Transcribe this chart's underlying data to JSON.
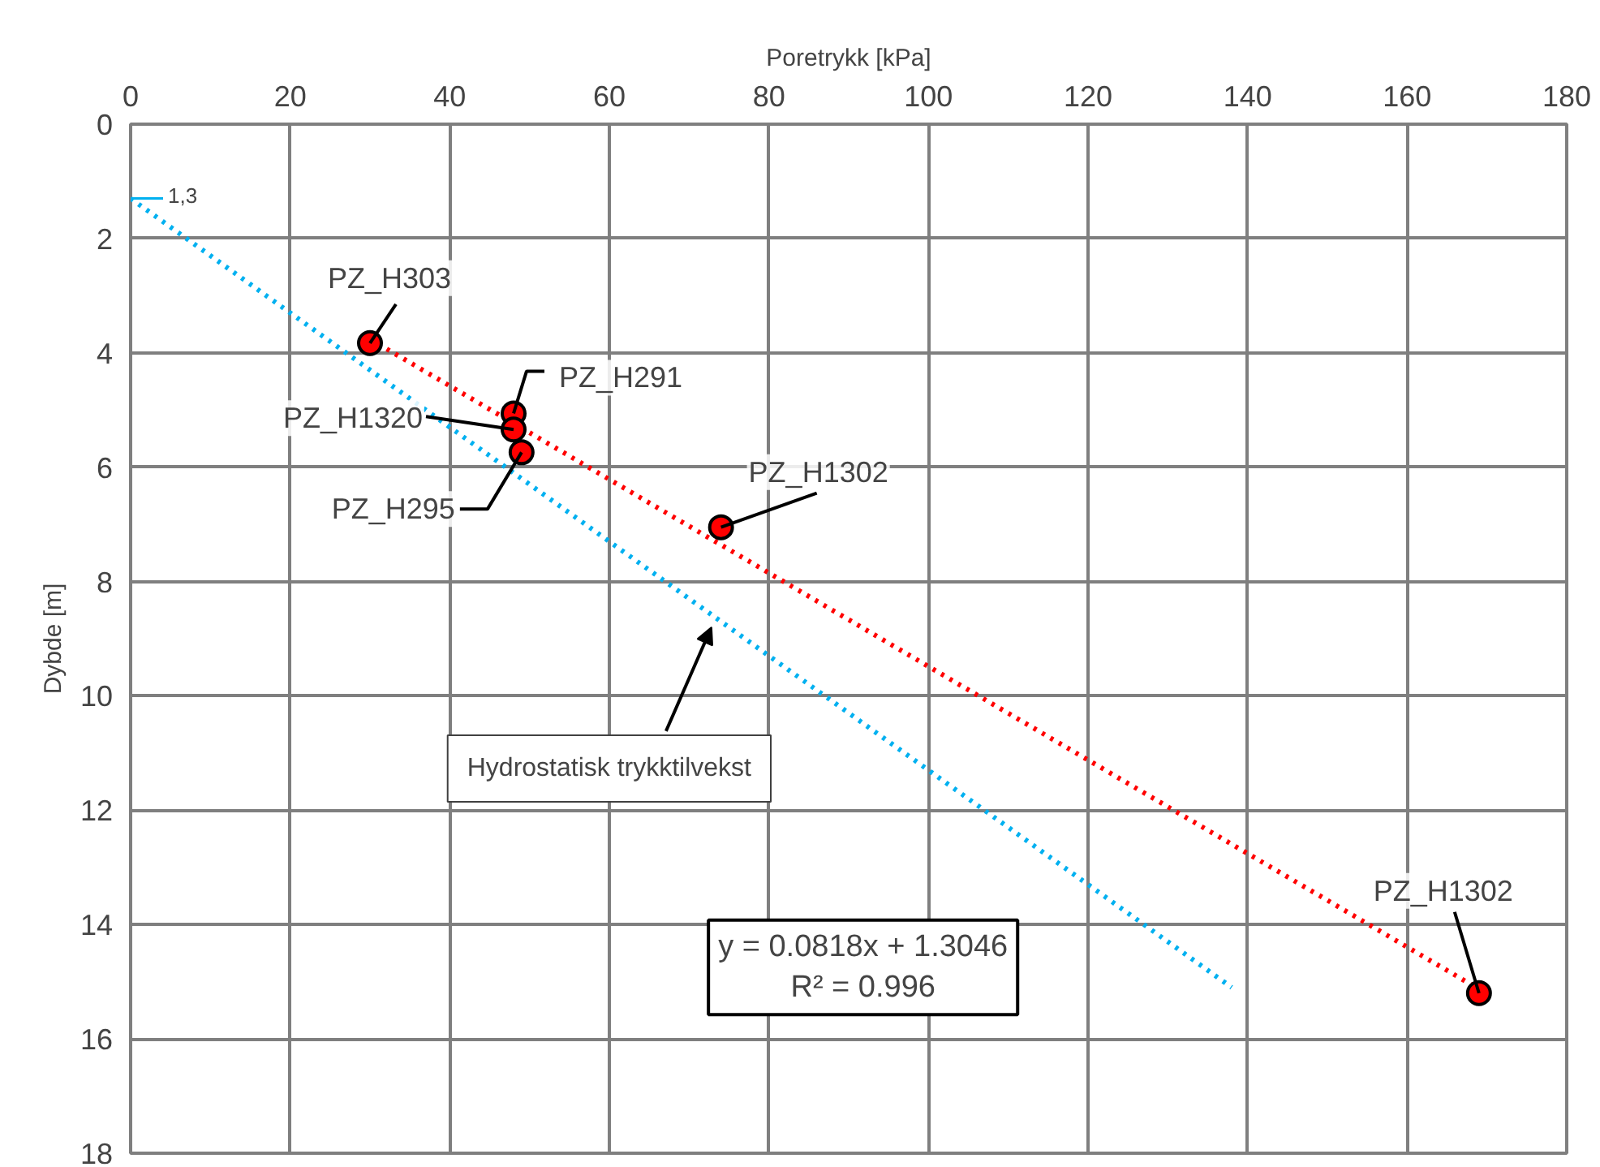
{
  "chart_data": {
    "type": "scatter",
    "xlabel": "Poretrykk [kPa]",
    "ylabel": "Dybde [m]",
    "xlim": [
      0,
      180
    ],
    "xticks": [
      0,
      20,
      40,
      60,
      80,
      100,
      120,
      140,
      160,
      180
    ],
    "ylim": [
      18,
      0
    ],
    "yticks": [
      0,
      2,
      4,
      6,
      8,
      10,
      12,
      14,
      16,
      18
    ],
    "grid": true,
    "series": [
      {
        "type": "line",
        "line_style": "dotted",
        "color": "#00b0f0",
        "x": [
          0,
          138
        ],
        "values": [
          1.3,
          15.1
        ]
      },
      {
        "type": "line",
        "line_style": "dotted",
        "color": "#ff0000",
        "x": [
          30,
          169
        ],
        "values": [
          3.76,
          15.13
        ]
      },
      {
        "marker": "circle",
        "color": "#ff0000",
        "x": [
          30,
          48,
          48,
          49,
          74,
          169
        ],
        "values": [
          3.83,
          5.06,
          5.34,
          5.74,
          7.05,
          15.2
        ]
      }
    ],
    "annotations": [
      {
        "text": "1,3",
        "x": 0,
        "y": 1.3
      },
      {
        "text": "PZ_H303",
        "x": 30,
        "y": 3.83
      },
      {
        "text": "PZ_H291",
        "x": 48,
        "y": 5.06
      },
      {
        "text": "PZ_H1320",
        "x": 48,
        "y": 5.34
      },
      {
        "text": "PZ_H295",
        "x": 49,
        "y": 5.74
      },
      {
        "text": "PZ_H1302",
        "x": 74,
        "y": 7.05
      },
      {
        "text": "PZ_H1302",
        "x": 169,
        "y": 15.2
      },
      {
        "text": "Hydrostatisk trykktilvekst",
        "x": 72.8,
        "y": 8.8
      },
      "y = 0.0818x + 1.3046\nR² = 0.996"
    ]
  }
}
